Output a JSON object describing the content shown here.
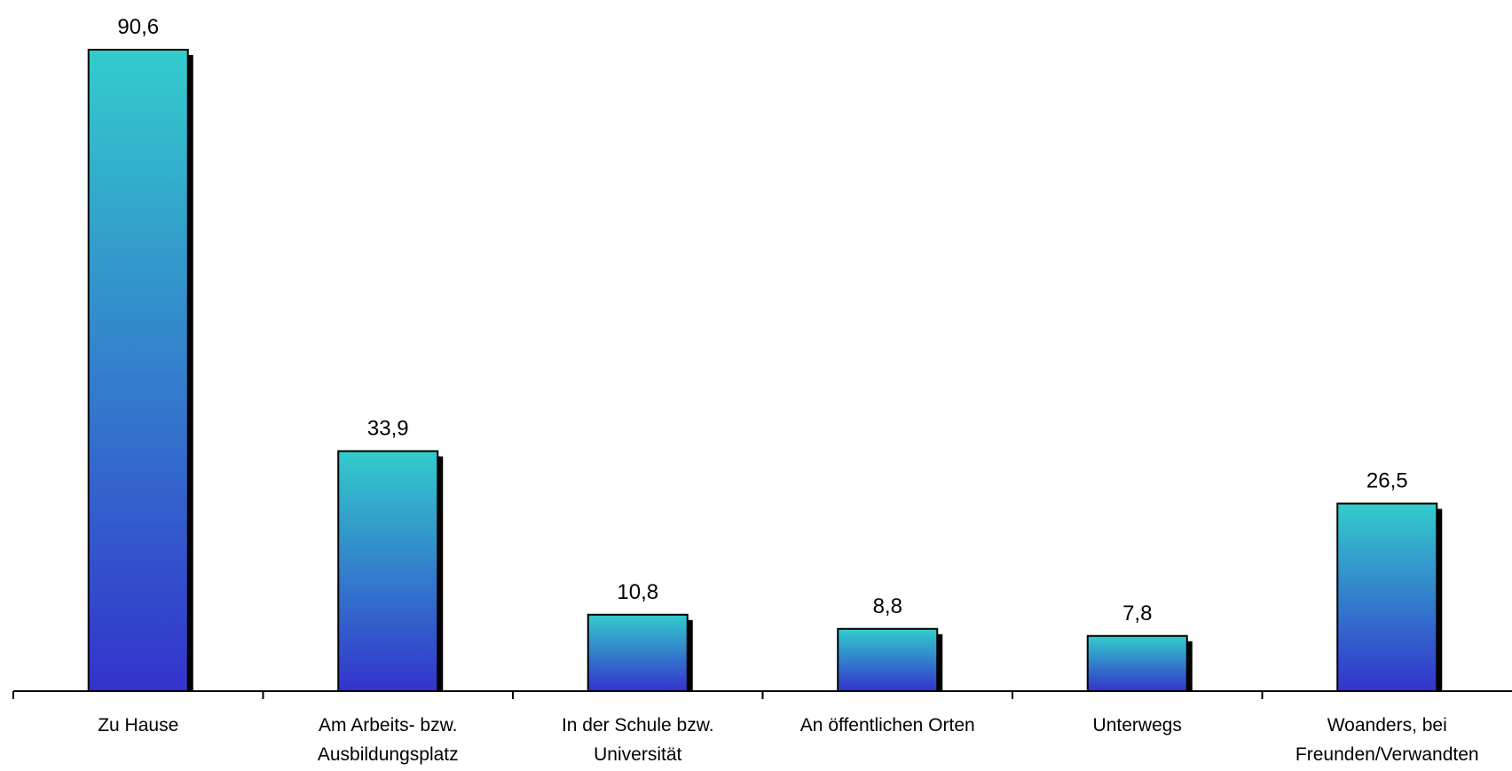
{
  "chart_data": {
    "type": "bar",
    "categories": [
      [
        "Zu Hause"
      ],
      [
        "Am Arbeits- bzw.",
        "Ausbildungsplatz"
      ],
      [
        "In der Schule bzw.",
        "Universität"
      ],
      [
        "An öffentlichen Orten"
      ],
      [
        "Unterwegs"
      ],
      [
        "Woanders, bei",
        "Freunden/Verwandten"
      ]
    ],
    "values": [
      90.6,
      33.9,
      10.8,
      8.8,
      7.8,
      26.5
    ],
    "value_labels": [
      "90,6",
      "33,9",
      "10,8",
      "8,8",
      "7,8",
      "26,5"
    ],
    "title": "",
    "xlabel": "",
    "ylabel": "",
    "ylim": [
      0,
      95
    ],
    "grid": false,
    "legend": "none",
    "colors": {
      "bar_top": "#33CCCC",
      "bar_bottom": "#3333CC",
      "shadow": "#000000",
      "outline": "#000000",
      "axis": "#000000"
    }
  }
}
